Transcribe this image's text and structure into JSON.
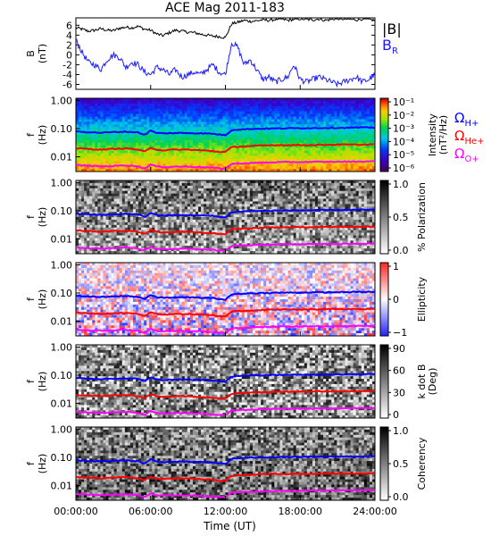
{
  "title": "ACE Mag 2011-183",
  "x_axis": {
    "label": "Time (UT)",
    "ticks": [
      "00:00:00",
      "06:00:00",
      "12:00:00",
      "18:00:00",
      "24:00:00"
    ],
    "range_hours": [
      0,
      24
    ]
  },
  "colors": {
    "b_total": "#000000",
    "b_radial": "#1a1aff",
    "omega_h": "#0000ff",
    "omega_he": "#ff0000",
    "omega_o": "#ff00ff"
  },
  "legend": {
    "b_total": "|B|",
    "b_radial": "B",
    "b_radial_sub": "R",
    "omega_h": "Ω",
    "omega_h_sub": "H+",
    "omega_he": "Ω",
    "omega_he_sub": "He+",
    "omega_o": "Ω",
    "omega_o_sub": "O+"
  },
  "freq_axis": {
    "label": "f",
    "unit": "(Hz)",
    "ticks": [
      "1.00",
      "0.10",
      "0.01"
    ],
    "range": [
      0.003,
      1.2
    ],
    "scale": "log"
  },
  "chart_data": [
    {
      "type": "line",
      "ylabel": "B",
      "yunit": "(nT)",
      "y_ticks": [
        "6",
        "4",
        "2",
        "0",
        "-2",
        "-4",
        "-6"
      ],
      "ylim": [
        -7,
        7.5
      ],
      "series": [
        {
          "name": "|B|",
          "x": [
            0,
            0.5,
            1,
            1.5,
            2,
            2.5,
            3,
            3.5,
            4,
            4.5,
            5,
            5.5,
            6,
            6.5,
            7,
            7.5,
            8,
            8.5,
            9,
            9.5,
            10,
            10.5,
            11,
            11.5,
            12,
            12.5,
            13,
            13.5,
            14,
            14.5,
            15,
            15.5,
            16,
            16.5,
            17,
            17.5,
            18,
            18.5,
            19,
            19.5,
            20,
            20.5,
            21,
            21.5,
            22,
            22.5,
            23,
            23.5,
            24
          ],
          "y": [
            5.5,
            5.2,
            4.8,
            5.0,
            5.3,
            5.0,
            4.9,
            5.4,
            5.6,
            5.5,
            5.8,
            5.2,
            5.0,
            4.2,
            3.9,
            4.5,
            5.0,
            4.8,
            4.6,
            4.5,
            4.2,
            4.0,
            3.8,
            3.7,
            3.5,
            6.3,
            6.6,
            7.0,
            6.8,
            6.9,
            7.1,
            7.0,
            7.2,
            7.3,
            7.0,
            7.2,
            7.3,
            7.2,
            7.1,
            7.3,
            7.0,
            7.2,
            7.4,
            7.3,
            7.2,
            7.1,
            7.3,
            7.2,
            7.0
          ]
        },
        {
          "name": "BR",
          "x": [
            0,
            0.5,
            1,
            1.5,
            2,
            2.5,
            3,
            3.5,
            4,
            4.5,
            5,
            5.5,
            6,
            6.5,
            7,
            7.5,
            8,
            8.5,
            9,
            9.5,
            10,
            10.5,
            11,
            11.5,
            12,
            12.5,
            13,
            13.5,
            14,
            14.5,
            15,
            15.5,
            16,
            16.5,
            17,
            17.5,
            18,
            18.5,
            19,
            19.5,
            20,
            20.5,
            21,
            21.5,
            22,
            22.5,
            23,
            23.5,
            24
          ],
          "y": [
            3.0,
            0.5,
            -1.5,
            -2.0,
            -3.0,
            -1.0,
            0.0,
            -0.5,
            -2.5,
            -1.5,
            -2.0,
            -3.5,
            -4.0,
            -2.5,
            -3.0,
            -4.0,
            -3.0,
            -4.5,
            -4.0,
            -3.5,
            -4.0,
            -3.0,
            -2.0,
            -3.5,
            -4.0,
            2.5,
            1.5,
            -2.0,
            -1.0,
            -3.0,
            -5.0,
            -4.5,
            -5.5,
            -5.0,
            -4.5,
            -2.0,
            -5.0,
            -5.5,
            -5.0,
            -4.5,
            -5.0,
            -5.5,
            -6.0,
            -5.5,
            -5.0,
            -4.5,
            -5.5,
            -5.0,
            -4.0
          ]
        }
      ]
    },
    {
      "type": "heatmap",
      "ylabel": "f",
      "yunit": "(Hz)",
      "colorbar": {
        "label": "Intensity",
        "unit": "(nT²/Hz)",
        "scale": "log",
        "ticks": [
          "10⁻¹",
          "10⁻²",
          "10⁻³",
          "10⁻⁴",
          "10⁻⁵",
          "10⁻⁶"
        ]
      }
    },
    {
      "type": "heatmap",
      "ylabel": "f",
      "yunit": "(Hz)",
      "colorbar": {
        "label": "% Polarization",
        "ticks": [
          "1.0",
          "0.5",
          "0.0"
        ]
      }
    },
    {
      "type": "heatmap",
      "ylabel": "f",
      "yunit": "(Hz)",
      "colorbar": {
        "label": "Ellipticity",
        "ticks": [
          "1",
          "0",
          "−1"
        ]
      }
    },
    {
      "type": "heatmap",
      "ylabel": "f",
      "yunit": "(Hz)",
      "colorbar": {
        "label": "k dot B",
        "unit": "(Deg)",
        "ticks": [
          "90",
          "60",
          "30",
          "0"
        ]
      }
    },
    {
      "type": "heatmap",
      "ylabel": "f",
      "yunit": "(Hz)",
      "colorbar": {
        "label": "Coherency",
        "ticks": [
          "1.0",
          "0.5",
          "0.0"
        ]
      }
    }
  ],
  "gyrofrequency_lines": {
    "x": [
      0,
      1,
      2,
      3,
      4,
      5,
      5.5,
      6,
      6.5,
      7,
      8,
      9,
      10,
      11,
      11.5,
      12,
      12.5,
      13,
      14,
      15,
      16,
      17,
      18,
      19,
      20,
      21,
      22,
      23,
      24
    ],
    "H+": [
      0.08,
      0.075,
      0.072,
      0.075,
      0.078,
      0.074,
      0.06,
      0.085,
      0.07,
      0.068,
      0.07,
      0.07,
      0.068,
      0.066,
      0.062,
      0.058,
      0.09,
      0.093,
      0.098,
      0.1,
      0.102,
      0.103,
      0.104,
      0.105,
      0.106,
      0.107,
      0.108,
      0.109,
      0.11
    ],
    "He+": [
      0.02,
      0.019,
      0.018,
      0.019,
      0.02,
      0.018,
      0.015,
      0.021,
      0.018,
      0.017,
      0.018,
      0.018,
      0.017,
      0.016,
      0.015,
      0.015,
      0.022,
      0.023,
      0.024,
      0.025,
      0.026,
      0.026,
      0.026,
      0.026,
      0.027,
      0.027,
      0.027,
      0.027,
      0.028
    ],
    "O+": [
      0.005,
      0.0048,
      0.0046,
      0.0047,
      0.005,
      0.0046,
      0.0038,
      0.0053,
      0.0045,
      0.0043,
      0.0045,
      0.0045,
      0.0043,
      0.0041,
      0.0039,
      0.0038,
      0.0056,
      0.0058,
      0.006,
      0.0062,
      0.0064,
      0.0065,
      0.0065,
      0.0066,
      0.0066,
      0.0067,
      0.0067,
      0.0068,
      0.0069
    ]
  }
}
